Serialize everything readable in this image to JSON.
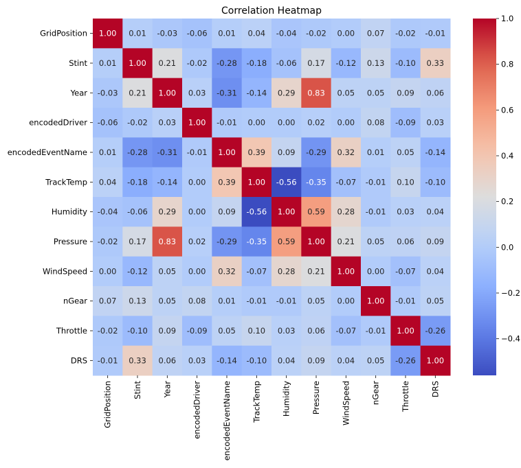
{
  "chart_data": {
    "type": "heatmap",
    "title": "Correlation Heatmap",
    "xlabel": "",
    "ylabel": "",
    "labels": [
      "GridPosition",
      "Stint",
      "Year",
      "encodedDriver",
      "encodedEventName",
      "TrackTemp",
      "Humidity",
      "Pressure",
      "WindSpeed",
      "nGear",
      "Throttle",
      "DRS"
    ],
    "values": [
      [
        1.0,
        0.01,
        -0.03,
        -0.06,
        0.01,
        0.04,
        -0.04,
        -0.02,
        -0.0,
        0.07,
        -0.02,
        -0.01
      ],
      [
        0.01,
        1.0,
        0.21,
        -0.02,
        -0.28,
        -0.18,
        -0.06,
        0.17,
        -0.12,
        0.13,
        -0.1,
        0.33
      ],
      [
        -0.03,
        0.21,
        1.0,
        0.03,
        -0.31,
        -0.14,
        0.29,
        0.83,
        0.05,
        0.05,
        0.09,
        0.06
      ],
      [
        -0.06,
        -0.02,
        0.03,
        1.0,
        -0.01,
        0.0,
        -0.0,
        0.02,
        -0.0,
        0.08,
        -0.09,
        0.03
      ],
      [
        0.01,
        -0.28,
        -0.31,
        -0.01,
        1.0,
        0.39,
        0.09,
        -0.29,
        0.32,
        0.01,
        0.05,
        -0.14
      ],
      [
        0.04,
        -0.18,
        -0.14,
        0.0,
        0.39,
        1.0,
        -0.56,
        -0.35,
        -0.07,
        -0.01,
        0.1,
        -0.1
      ],
      [
        -0.04,
        -0.06,
        0.29,
        -0.0,
        0.09,
        -0.56,
        1.0,
        0.59,
        0.28,
        -0.01,
        0.03,
        0.04
      ],
      [
        -0.02,
        0.17,
        0.83,
        0.02,
        -0.29,
        -0.35,
        0.59,
        1.0,
        0.21,
        0.05,
        0.06,
        0.09
      ],
      [
        -0.0,
        -0.12,
        0.05,
        -0.0,
        0.32,
        -0.07,
        0.28,
        0.21,
        1.0,
        -0.0,
        -0.07,
        0.04
      ],
      [
        0.07,
        0.13,
        0.05,
        0.08,
        0.01,
        -0.01,
        -0.01,
        0.05,
        -0.0,
        1.0,
        -0.01,
        0.05
      ],
      [
        -0.02,
        -0.1,
        0.09,
        -0.09,
        0.05,
        0.1,
        0.03,
        0.06,
        -0.07,
        -0.01,
        1.0,
        -0.26
      ],
      [
        -0.01,
        0.33,
        0.06,
        0.03,
        -0.14,
        -0.1,
        0.04,
        0.09,
        0.04,
        0.05,
        -0.26,
        1.0
      ]
    ],
    "annotation_format": "0.00",
    "colormap": "coolwarm",
    "vmin": -0.56,
    "vmax": 1.0,
    "colorbar": {
      "ticks": [
        1.0,
        0.8,
        0.6,
        0.4,
        0.2,
        0.0,
        -0.2,
        -0.4
      ],
      "tick_labels": [
        "1.0",
        "0.8",
        "0.6",
        "0.4",
        "0.2",
        "0.0",
        "−0.2",
        "−0.4"
      ],
      "placement": "right"
    },
    "grid": false
  }
}
